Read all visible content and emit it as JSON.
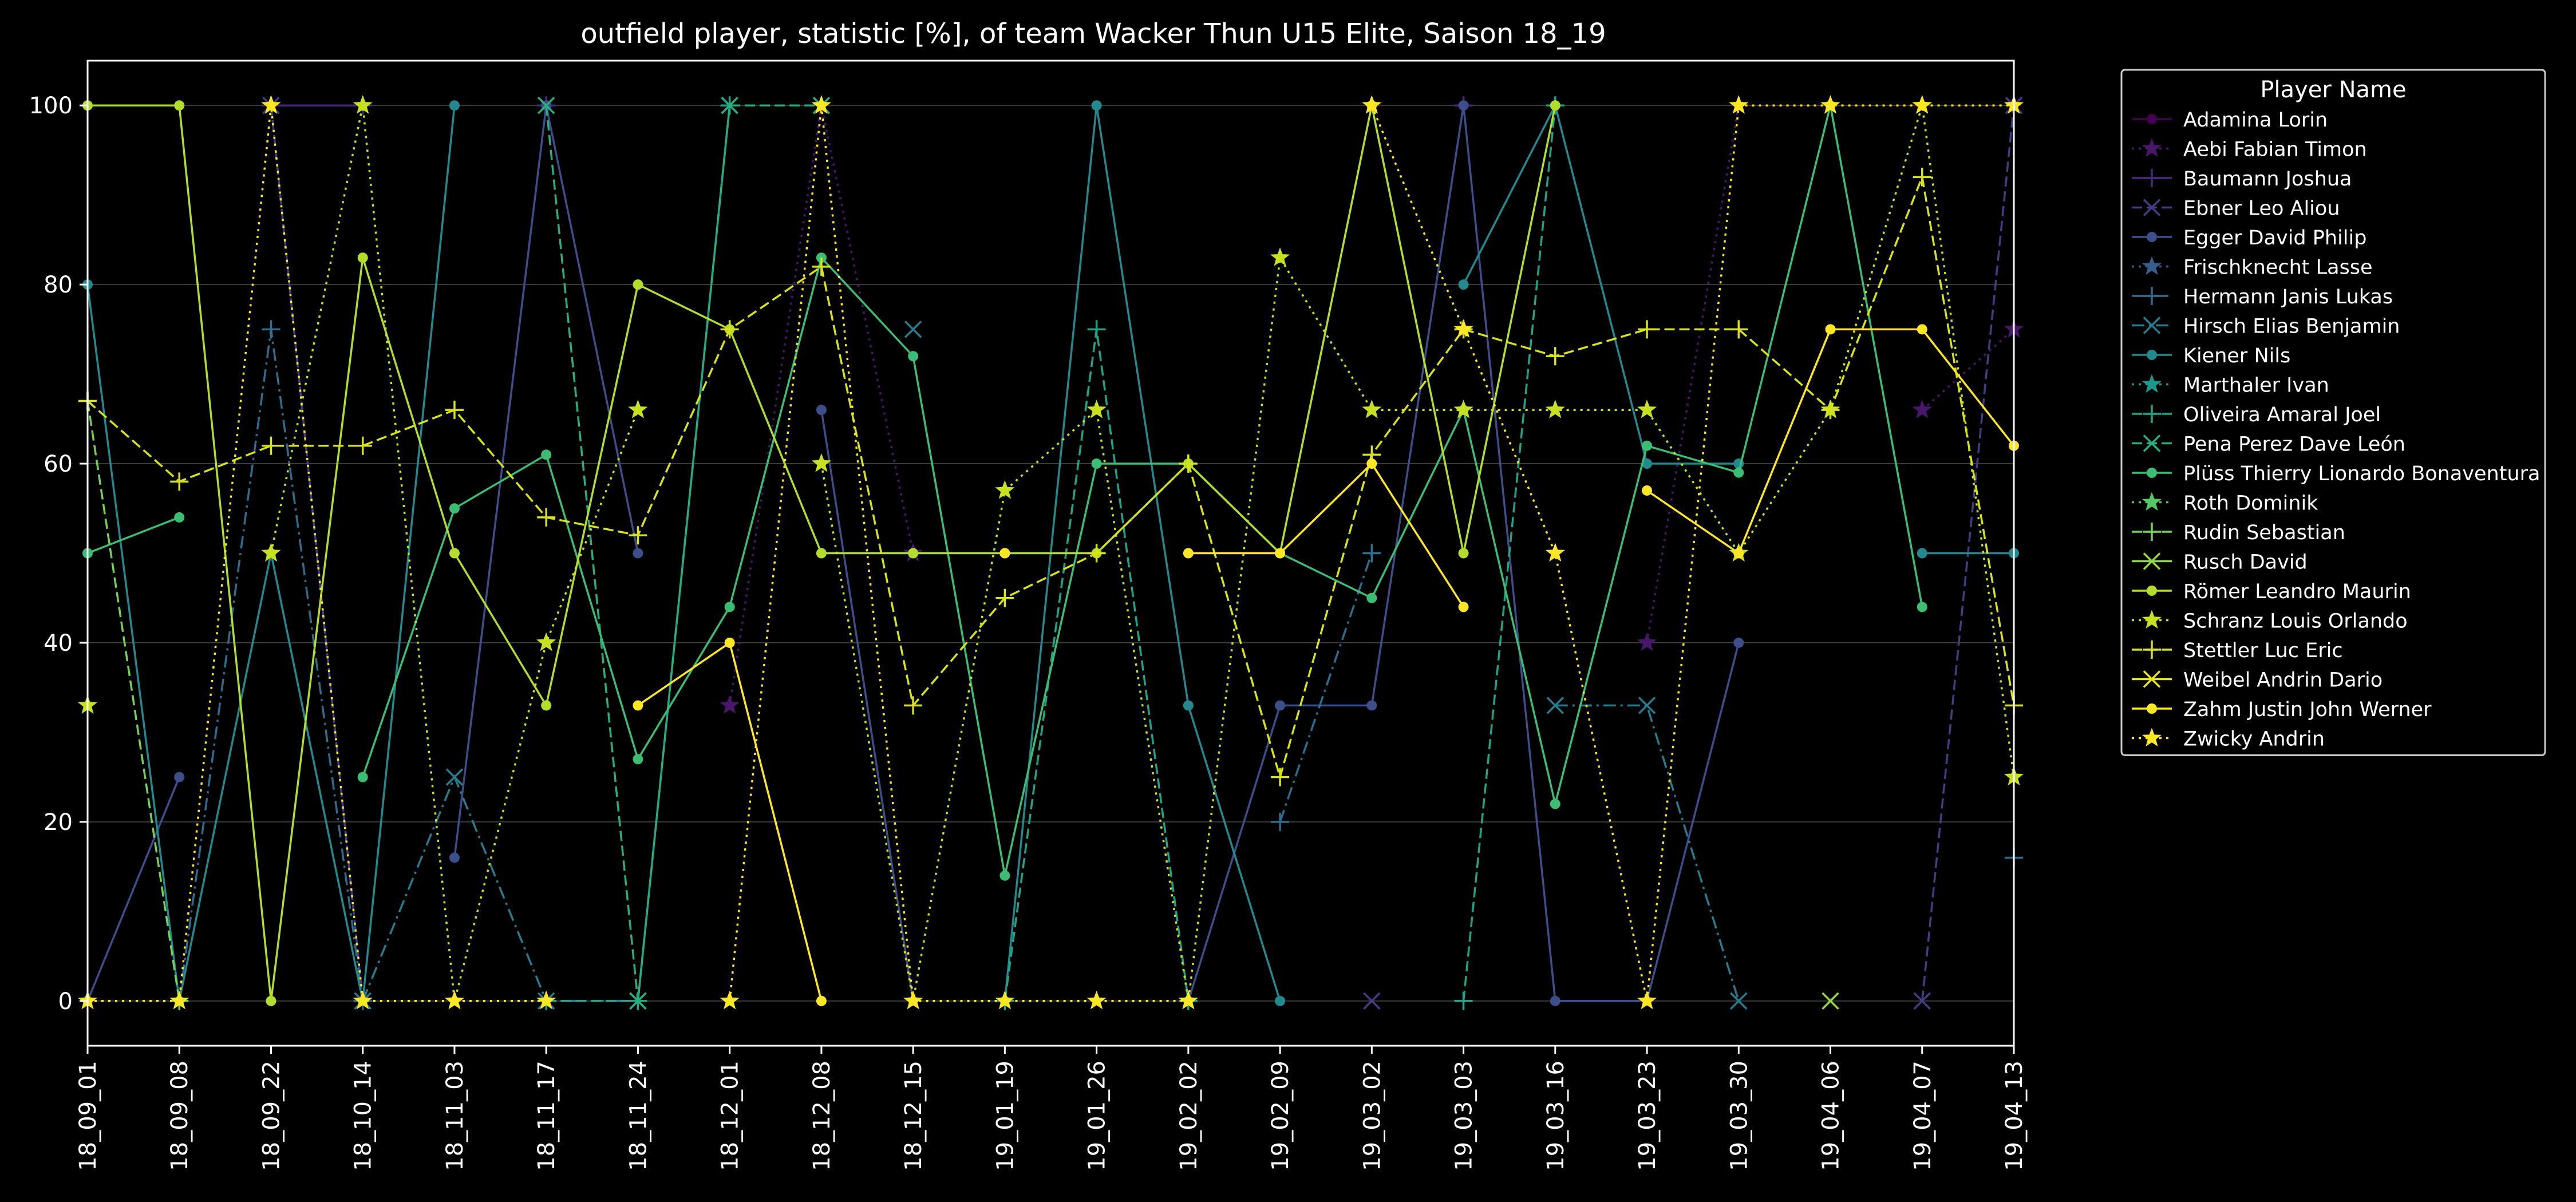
{
  "chart_data": {
    "type": "line",
    "title": "outfield player, statistic [%], of team Wacker Thun U15 Elite, Saison 18_19",
    "xlabel": "",
    "ylabel": "",
    "ylim": [
      -5,
      105
    ],
    "yticks": [
      0,
      20,
      40,
      60,
      80,
      100
    ],
    "grid": true,
    "legend": {
      "title": "Player Name",
      "placement": "outside-top-right"
    },
    "categories": [
      "18_09_01",
      "18_09_08",
      "18_09_22",
      "18_10_14",
      "18_11_03",
      "18_11_17",
      "18_11_24",
      "18_12_01",
      "18_12_08",
      "18_12_15",
      "19_01_19",
      "19_01_26",
      "19_02_02",
      "19_02_09",
      "19_03_02",
      "19_03_03",
      "19_03_16",
      "19_03_23",
      "19_03_30",
      "19_04_06",
      "19_04_07",
      "19_04_13"
    ],
    "series": [
      {
        "name": "Adamina Lorin",
        "color": "#440154",
        "marker": "o",
        "dash": "solid",
        "values": [
          null,
          null,
          100,
          null,
          null,
          null,
          null,
          null,
          null,
          null,
          null,
          null,
          null,
          null,
          null,
          null,
          100,
          null,
          null,
          null,
          null,
          null
        ]
      },
      {
        "name": "Aebi Fabian Timon",
        "color": "#481769",
        "marker": "*",
        "dash": "dotted",
        "values": [
          null,
          null,
          100,
          null,
          null,
          null,
          null,
          33,
          100,
          50,
          null,
          null,
          null,
          null,
          null,
          null,
          null,
          40,
          100,
          null,
          66,
          75
        ]
      },
      {
        "name": "Baumann Joshua",
        "color": "#472a7a",
        "marker": "+",
        "dash": "solid",
        "values": [
          null,
          null,
          100,
          100,
          null,
          100,
          null,
          null,
          null,
          null,
          null,
          null,
          null,
          null,
          null,
          100,
          null,
          null,
          null,
          null,
          null,
          null
        ]
      },
      {
        "name": "Ebner Leo Aliou",
        "color": "#433d84",
        "marker": "x",
        "dash": "dashed",
        "values": [
          null,
          null,
          100,
          0,
          null,
          null,
          null,
          null,
          null,
          null,
          null,
          null,
          null,
          null,
          0,
          null,
          null,
          null,
          null,
          null,
          0,
          100
        ]
      },
      {
        "name": "Egger David Philip",
        "color": "#3d4e8a",
        "marker": "o",
        "dash": "solid",
        "values": [
          0,
          25,
          null,
          null,
          16,
          100,
          50,
          null,
          66,
          0,
          null,
          null,
          0,
          33,
          33,
          100,
          0,
          0,
          40,
          null,
          null,
          null
        ]
      },
      {
        "name": "Frischknecht Lasse",
        "color": "#355e8d",
        "marker": "*",
        "dash": "dotted",
        "values": [
          null,
          null,
          null,
          null,
          null,
          null,
          null,
          null,
          null,
          null,
          null,
          null,
          null,
          null,
          null,
          null,
          50,
          null,
          null,
          null,
          null,
          null
        ]
      },
      {
        "name": "Hermann Janis Lukas",
        "color": "#2e6d8e",
        "marker": "+",
        "dash": "dashdot",
        "values": [
          null,
          0,
          75,
          0,
          null,
          null,
          null,
          null,
          null,
          null,
          null,
          null,
          null,
          20,
          50,
          null,
          null,
          null,
          null,
          null,
          null,
          16
        ]
      },
      {
        "name": "Hirsch Elias Benjamin",
        "color": "#297b8e",
        "marker": "x",
        "dash": "dashdot",
        "values": [
          null,
          null,
          null,
          0,
          25,
          0,
          0,
          100,
          null,
          75,
          null,
          null,
          null,
          null,
          null,
          null,
          33,
          33,
          0,
          null,
          null,
          null
        ]
      },
      {
        "name": "Kiener Nils",
        "color": "#23898e",
        "marker": "o",
        "dash": "solid",
        "values": [
          80,
          0,
          50,
          0,
          100,
          null,
          null,
          null,
          null,
          null,
          0,
          100,
          33,
          0,
          null,
          80,
          100,
          60,
          60,
          null,
          50,
          50
        ]
      },
      {
        "name": "Marthaler Ivan",
        "color": "#1f968b",
        "marker": "*",
        "dash": "dotted",
        "values": [
          null,
          null,
          null,
          null,
          null,
          null,
          null,
          null,
          null,
          null,
          null,
          null,
          null,
          null,
          null,
          null,
          null,
          null,
          null,
          null,
          null,
          null
        ]
      },
      {
        "name": "Oliveira Amaral Joel",
        "color": "#20a386",
        "marker": "+",
        "dash": "dashed",
        "values": [
          null,
          null,
          null,
          null,
          null,
          0,
          0,
          100,
          null,
          null,
          0,
          75,
          0,
          null,
          null,
          0,
          100,
          null,
          null,
          null,
          null,
          null
        ]
      },
      {
        "name": "Pena Perez Dave León",
        "color": "#29af7f",
        "marker": "x",
        "dash": "dashed",
        "values": [
          null,
          null,
          null,
          null,
          null,
          100,
          0,
          100,
          100,
          null,
          null,
          null,
          null,
          null,
          null,
          null,
          null,
          null,
          null,
          null,
          null,
          null
        ]
      },
      {
        "name": "Plüss Thierry Lionardo Bonaventura",
        "color": "#3dbc74",
        "marker": "o",
        "dash": "solid",
        "values": [
          50,
          54,
          null,
          25,
          55,
          61,
          27,
          44,
          83,
          72,
          14,
          60,
          60,
          50,
          45,
          66,
          22,
          62,
          59,
          100,
          44,
          null
        ]
      },
      {
        "name": "Roth Dominik",
        "color": "#56c667",
        "marker": "*",
        "dash": "dotted",
        "values": [
          null,
          null,
          null,
          null,
          null,
          null,
          null,
          null,
          null,
          null,
          null,
          null,
          null,
          null,
          null,
          null,
          null,
          null,
          null,
          null,
          null,
          null
        ]
      },
      {
        "name": "Rudin Sebastian",
        "color": "#75d054",
        "marker": "+",
        "dash": "dashed",
        "values": [
          67,
          0,
          null,
          null,
          null,
          null,
          null,
          null,
          null,
          null,
          null,
          null,
          null,
          null,
          null,
          null,
          null,
          null,
          null,
          null,
          null,
          null
        ]
      },
      {
        "name": "Rusch David",
        "color": "#95d840",
        "marker": "x",
        "dash": "solid",
        "values": [
          null,
          null,
          null,
          null,
          null,
          null,
          null,
          null,
          null,
          null,
          null,
          null,
          null,
          null,
          null,
          null,
          null,
          null,
          null,
          0,
          null,
          null
        ]
      },
      {
        "name": "Römer Leandro Maurin",
        "color": "#b3dd2c",
        "marker": "o",
        "dash": "solid",
        "values": [
          100,
          100,
          0,
          83,
          50,
          33,
          80,
          75,
          50,
          50,
          50,
          50,
          60,
          50,
          100,
          50,
          100,
          null,
          null,
          null,
          null,
          null
        ]
      },
      {
        "name": "Schranz Louis Orlando",
        "color": "#c7e020",
        "marker": "*",
        "dash": "dotted",
        "values": [
          33,
          null,
          50,
          100,
          0,
          40,
          66,
          null,
          60,
          0,
          57,
          66,
          0,
          83,
          66,
          66,
          66,
          66,
          50,
          66,
          100,
          25
        ]
      },
      {
        "name": "Stettler Luc Eric",
        "color": "#d8e219",
        "marker": "+",
        "dash": "dashed",
        "values": [
          67,
          58,
          62,
          62,
          66,
          54,
          52,
          75,
          82,
          33,
          45,
          50,
          60,
          25,
          61,
          75,
          72,
          75,
          75,
          66,
          92,
          33
        ]
      },
      {
        "name": "Weibel Andrin Dario",
        "color": "#eae51a",
        "marker": "x",
        "dash": "solid",
        "values": [
          null,
          null,
          null,
          null,
          null,
          null,
          null,
          null,
          null,
          null,
          null,
          null,
          null,
          null,
          null,
          null,
          null,
          null,
          null,
          null,
          null,
          null
        ]
      },
      {
        "name": "Zahm Justin John Werner",
        "color": "#fde725",
        "marker": "o",
        "dash": "solid",
        "values": [
          null,
          null,
          null,
          null,
          null,
          null,
          33,
          40,
          0,
          null,
          50,
          null,
          50,
          50,
          60,
          44,
          null,
          57,
          50,
          75,
          75,
          62
        ]
      },
      {
        "name": "Zwicky Andrin",
        "color": "#fde725",
        "marker": "*",
        "dash": "dotted",
        "values": [
          0,
          0,
          100,
          0,
          0,
          0,
          null,
          0,
          100,
          0,
          0,
          0,
          0,
          null,
          100,
          75,
          50,
          0,
          100,
          100,
          100,
          100
        ]
      }
    ]
  }
}
